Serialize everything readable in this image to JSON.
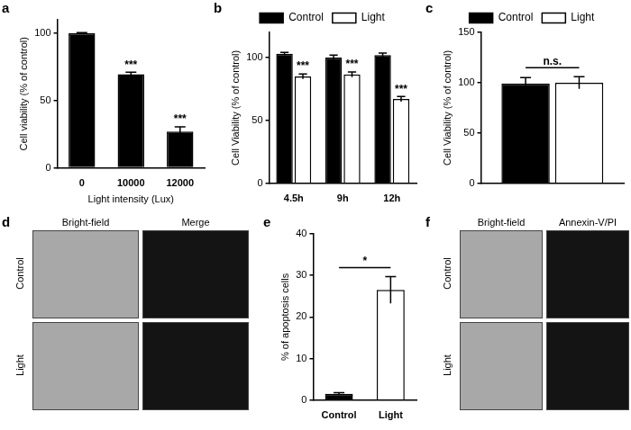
{
  "chart_data": [
    {
      "panel": "a",
      "type": "bar",
      "categories": [
        "0",
        "10000",
        "12000"
      ],
      "values": [
        100,
        69.5,
        27
      ],
      "errors": [
        0.5,
        1.5,
        3.5
      ],
      "color": "#000000",
      "xlabel": "Light intensity (Lux)",
      "ylabel": "Cell viability (% of control)",
      "ylim": [
        0,
        110
      ],
      "yticks": [
        0,
        50,
        100
      ],
      "grid": false,
      "annotations": [
        {
          "text": "***",
          "series": 0,
          "index": 1
        },
        {
          "text": "***",
          "series": 0,
          "index": 2
        }
      ]
    },
    {
      "panel": "b",
      "type": "bar",
      "categories": [
        "4.5h",
        "9h",
        "12h"
      ],
      "series": [
        {
          "name": "Control",
          "color": "#000000",
          "values": [
            103,
            100,
            102
          ],
          "errors": [
            1,
            2,
            1.5
          ]
        },
        {
          "name": "Light",
          "color": "#ffffff",
          "values": [
            85,
            86.5,
            67
          ],
          "errors": [
            2,
            2,
            2
          ]
        }
      ],
      "ylabel": "Cell Viability (% of control)",
      "ylim": [
        0,
        120
      ],
      "yticks": [
        0,
        50,
        100
      ],
      "grid": false,
      "legend": "top",
      "annotations": [
        {
          "text": "***",
          "series": 1,
          "index": 0
        },
        {
          "text": "***",
          "series": 1,
          "index": 1
        },
        {
          "text": "***",
          "series": 1,
          "index": 2
        }
      ]
    },
    {
      "panel": "c",
      "type": "bar",
      "categories": [
        null
      ],
      "series": [
        {
          "name": "Control",
          "color": "#000000",
          "values": [
            99
          ],
          "errors": [
            6
          ]
        },
        {
          "name": "Light",
          "color": "#ffffff",
          "values": [
            100
          ],
          "errors": [
            6
          ]
        }
      ],
      "ylabel": "Cell Viability (% of control)",
      "ylim": [
        0,
        150
      ],
      "yticks": [
        0,
        50,
        100,
        150
      ],
      "grid": false,
      "legend": "top",
      "annotations": [
        {
          "text": "n.s.",
          "from": {
            "series": 0,
            "index": 0
          },
          "to": {
            "series": 1,
            "index": 0
          }
        }
      ]
    },
    {
      "panel": "e",
      "type": "bar",
      "categories": [
        "Control",
        "Light"
      ],
      "values": [
        1.5,
        26.5
      ],
      "errors": [
        0.3,
        3.2
      ],
      "colors": [
        "#000000",
        "#ffffff"
      ],
      "ylabel": "% of apoptosis cells",
      "ylim": [
        0,
        40
      ],
      "yticks": [
        0,
        10,
        20,
        30,
        40
      ],
      "grid": false,
      "annotations": [
        {
          "text": "*",
          "from": {
            "series": 0,
            "index": 0
          },
          "to": {
            "series": 0,
            "index": 1
          }
        }
      ]
    }
  ],
  "images": [
    {
      "panel": "d",
      "columns": [
        "Bright-field",
        "Merge"
      ],
      "rows": [
        "Control",
        "Light"
      ]
    },
    {
      "panel": "f",
      "columns": [
        "Bright-field",
        "Annexin-V/PI"
      ],
      "rows": [
        "Control",
        "Light"
      ]
    }
  ]
}
